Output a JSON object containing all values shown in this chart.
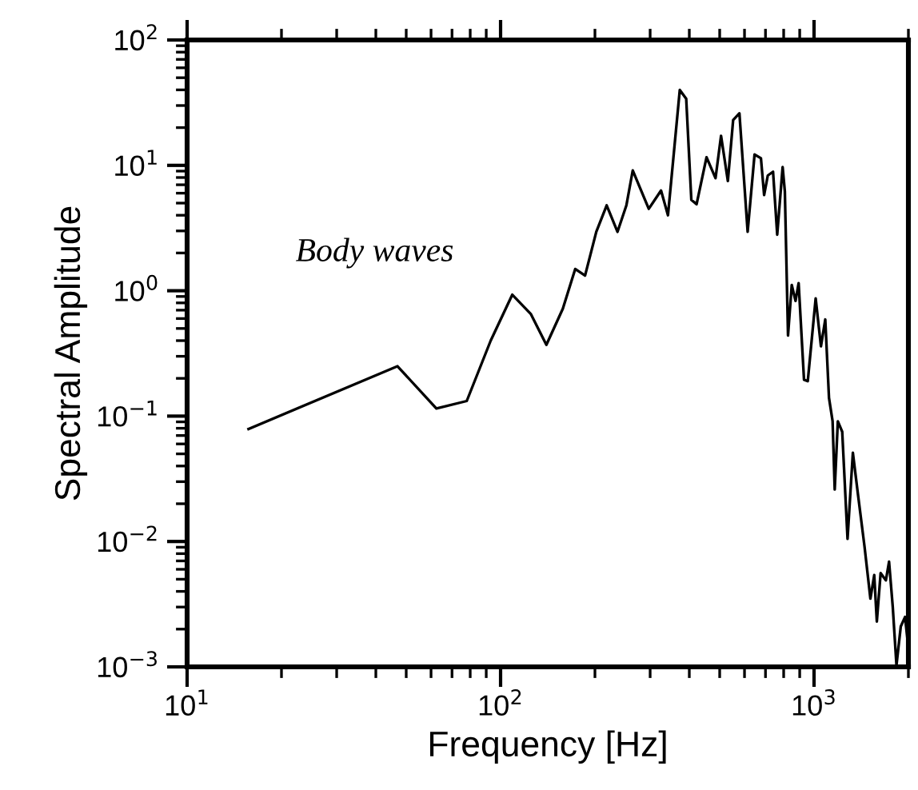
{
  "chart_data": {
    "type": "line",
    "xlabel": "Frequency [Hz]",
    "ylabel": "Spectral Amplitude",
    "log": "xy",
    "grid": false,
    "marker": "none",
    "line_style": "solid",
    "annotations": [
      "Body waves"
    ],
    "xlim": [
      10,
      2000
    ],
    "ylim": [
      0.001,
      100
    ],
    "xticks": [
      {
        "value": 10,
        "label": "10$^{1}$"
      },
      {
        "value": 100,
        "label": "10$^{2}$"
      },
      {
        "value": 1000,
        "label": "10$^{3}$"
      }
    ],
    "yticks": [
      {
        "value": 0.001,
        "label": "10$^{−3}$"
      },
      {
        "value": 0.01,
        "label": "10$^{−2}$"
      },
      {
        "value": 0.1,
        "label": "10$^{−1}$"
      },
      {
        "value": 1,
        "label": "10$^{0}$"
      },
      {
        "value": 10,
        "label": "10$^{1}$"
      },
      {
        "value": 100,
        "label": "10$^{2}$"
      }
    ],
    "series": [
      {
        "color": "#000000",
        "x": [
          15.7,
          46.9,
          62.4,
          78,
          93,
          109,
          125,
          140,
          158,
          173,
          186,
          202,
          218,
          236,
          252,
          264,
          297,
          325,
          342,
          373,
          391,
          406,
          422,
          454,
          485,
          505,
          531,
          552,
          578,
          614,
          646,
          677,
          693,
          712,
          740,
          763,
          794,
          807,
          826,
          849,
          873,
          893,
          929,
          955,
          1012,
          1052,
          1086,
          1116,
          1146,
          1164,
          1191,
          1230,
          1279,
          1330,
          1383,
          1449,
          1513,
          1556,
          1586,
          1631,
          1695,
          1735,
          1783,
          1832,
          1891,
          1951,
          1995
        ],
        "values": [
          0.079,
          0.25,
          0.115,
          0.132,
          0.4,
          0.93,
          0.65,
          0.37,
          0.72,
          1.49,
          1.32,
          2.95,
          4.8,
          2.95,
          4.8,
          9.1,
          4.5,
          6.3,
          4.0,
          40,
          34,
          5.3,
          4.9,
          11.6,
          7.9,
          17.2,
          7.5,
          23,
          26,
          2.95,
          12.2,
          11.4,
          5.8,
          8.3,
          8.9,
          2.8,
          9.7,
          6.2,
          0.44,
          1.11,
          0.83,
          1.15,
          0.195,
          0.19,
          0.87,
          0.36,
          0.59,
          0.14,
          0.091,
          0.026,
          0.091,
          0.075,
          0.0105,
          0.051,
          0.023,
          0.0091,
          0.0035,
          0.0054,
          0.0023,
          0.0056,
          0.0049,
          0.0069,
          0.003,
          0.00103,
          0.0021,
          0.0025,
          0.0015
        ]
      }
    ]
  }
}
